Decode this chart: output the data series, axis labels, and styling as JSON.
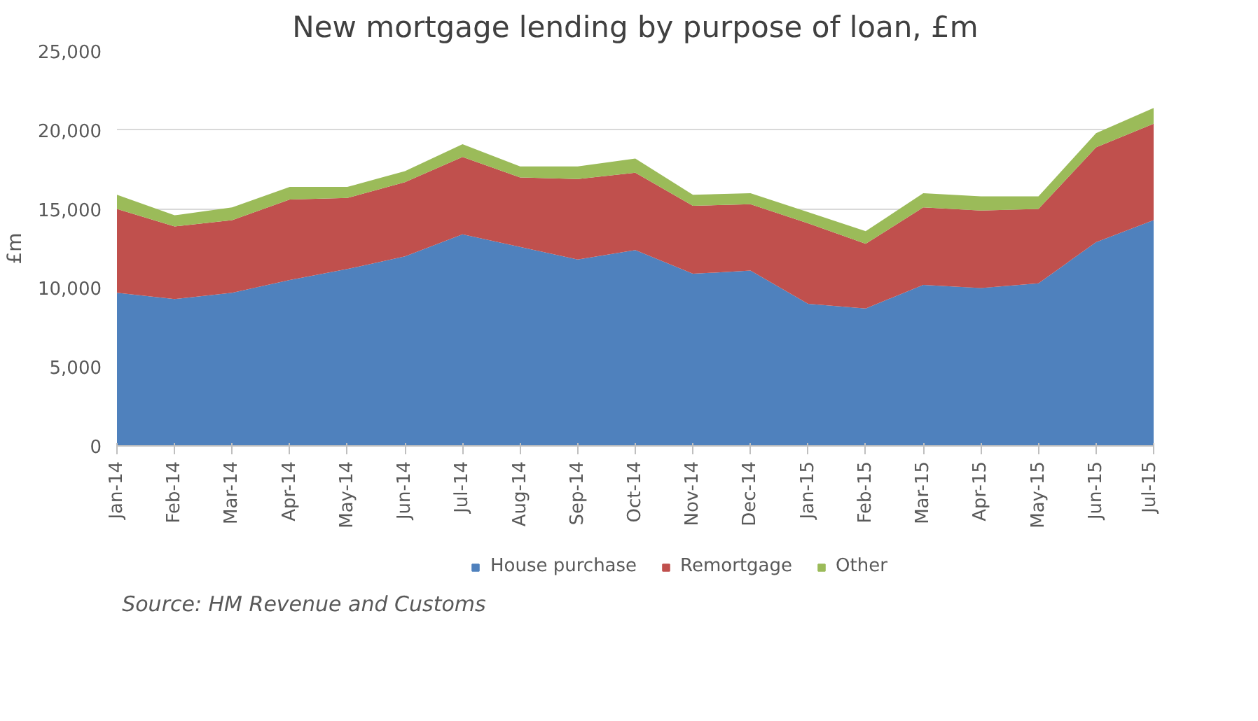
{
  "chart_data": {
    "type": "area",
    "stacked": true,
    "title": "New mortgage lending by purpose of loan, £m",
    "ylabel": "£m",
    "categories": [
      "Jan-14",
      "Feb-14",
      "Mar-14",
      "Apr-14",
      "May-14",
      "Jun-14",
      "Jul-14",
      "Aug-14",
      "Sep-14",
      "Oct-14",
      "Nov-14",
      "Dec-14",
      "Jan-15",
      "Feb-15",
      "Mar-15",
      "Apr-15",
      "May-15",
      "Jun-15",
      "Jul-15"
    ],
    "series": [
      {
        "name": "House purchase",
        "color": "#4f81bd",
        "values": [
          9700,
          9300,
          9700,
          10500,
          11200,
          12000,
          13400,
          12600,
          11800,
          12400,
          10900,
          11100,
          9000,
          8700,
          10200,
          10000,
          10300,
          12900,
          14300
        ]
      },
      {
        "name": "Remortgage",
        "color": "#c0504d",
        "values": [
          5300,
          4600,
          4600,
          5100,
          4500,
          4700,
          4900,
          4400,
          5100,
          4900,
          4300,
          4200,
          5100,
          4100,
          4900,
          4900,
          4700,
          6000,
          6100
        ]
      },
      {
        "name": "Other",
        "color": "#9bbb59",
        "values": [
          900,
          700,
          800,
          800,
          700,
          700,
          800,
          700,
          800,
          900,
          700,
          700,
          700,
          800,
          900,
          900,
          800,
          900,
          1000
        ]
      }
    ],
    "ylim": [
      0,
      25000
    ],
    "yticks": [
      0,
      {
        "value": 5000,
        "label": "5,000"
      },
      {
        "value": 10000,
        "label": "10,000"
      },
      {
        "value": 15000,
        "label": "15,000"
      },
      {
        "value": 20000,
        "label": "20,000"
      },
      {
        "value": 25000,
        "label": "25,000"
      }
    ],
    "grid": "y",
    "legend": "bottom",
    "annotations": [
      "Source: HM Revenue and Customs"
    ]
  }
}
